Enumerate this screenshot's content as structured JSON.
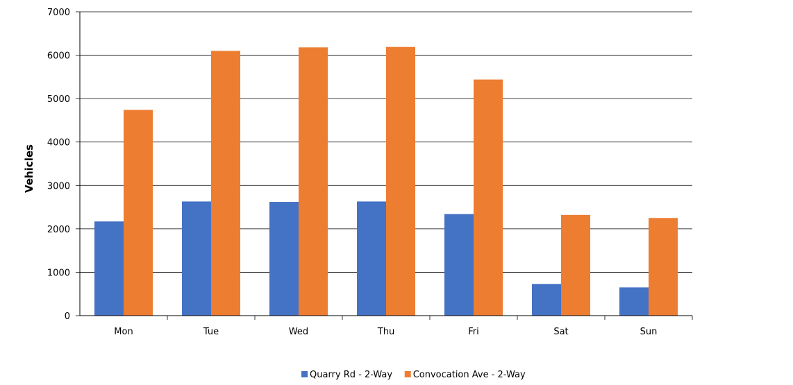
{
  "chart_data": {
    "type": "bar",
    "title": "",
    "xlabel": "",
    "ylabel": "Vehicles",
    "ylim": [
      0,
      7000
    ],
    "yticks": [
      0,
      1000,
      2000,
      3000,
      4000,
      5000,
      6000,
      7000
    ],
    "categories": [
      "Mon",
      "Tue",
      "Wed",
      "Thu",
      "Fri",
      "Sat",
      "Sun"
    ],
    "grid": true,
    "legend_position": "bottom",
    "series": [
      {
        "name": "Quarry Rd - 2-Way",
        "color": "#4472C4",
        "values": [
          2170,
          2630,
          2620,
          2630,
          2340,
          730,
          650
        ]
      },
      {
        "name": "Convocation Ave - 2-Way",
        "color": "#ED7D31",
        "values": [
          4740,
          6100,
          6180,
          6190,
          5440,
          2320,
          2250
        ]
      }
    ]
  }
}
